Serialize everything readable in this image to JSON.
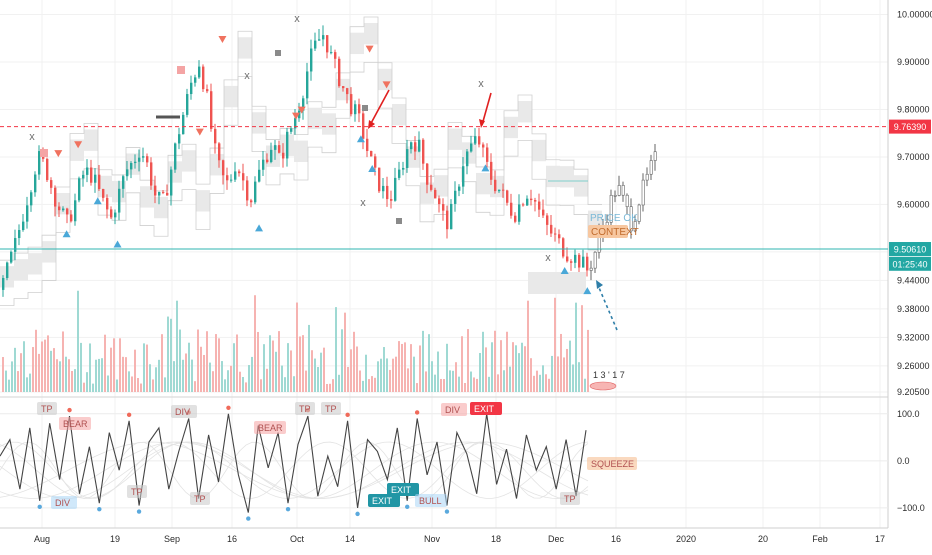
{
  "chart_data": [
    {
      "type": "candlestick",
      "title": "",
      "xlabel": "",
      "ylabel": "",
      "x_tick_labels": [
        "Aug",
        "19",
        "Sep",
        "16",
        "Oct",
        "14",
        "Nov",
        "18",
        "Dec",
        "16",
        "2020",
        "20",
        "Feb",
        "17"
      ],
      "y_tick_labels": [
        "10.00000",
        "9.90000",
        "9.80000",
        "9.70000",
        "9.60000",
        "9.50000",
        "9.44000",
        "9.38000",
        "9.32000",
        "9.26000",
        "9.20500"
      ],
      "ylim": [
        9.205,
        10.02
      ],
      "price_path": [
        9.42,
        9.47,
        9.52,
        9.58,
        9.64,
        9.7,
        9.68,
        9.63,
        9.59,
        9.56,
        9.6,
        9.66,
        9.67,
        9.64,
        9.6,
        9.57,
        9.62,
        9.67,
        9.69,
        9.72,
        9.68,
        9.62,
        9.6,
        9.66,
        9.74,
        9.8,
        9.86,
        9.9,
        9.83,
        9.72,
        9.66,
        9.64,
        9.69,
        9.65,
        9.61,
        9.66,
        9.7,
        9.73,
        9.69,
        9.74,
        9.78,
        9.83,
        9.9,
        9.94,
        9.96,
        9.91,
        9.87,
        9.83,
        9.8,
        9.77,
        9.71,
        9.66,
        9.63,
        9.61,
        9.65,
        9.7,
        9.74,
        9.72,
        9.66,
        9.63,
        9.58,
        9.56,
        9.62,
        9.69,
        9.72,
        9.74,
        9.69,
        9.65,
        9.63,
        9.6,
        9.58,
        9.61,
        9.63,
        9.6,
        9.56,
        9.54,
        9.52,
        9.5,
        9.49,
        9.48,
        9.46,
        9.5,
        9.55,
        9.6,
        9.64,
        9.6,
        9.56,
        9.61,
        9.65,
        9.69,
        9.71
      ],
      "levels": [
        {
          "value": "9.76390",
          "role": "resistance",
          "color": "#f23645",
          "style": "dashed"
        },
        {
          "value": "9.50610",
          "role": "last-price",
          "color": "#2fb5b1",
          "style": "solid"
        }
      ],
      "price_badges": [
        {
          "text": "9.76390",
          "value": 9.7639,
          "color": "#f23645"
        },
        {
          "text": "9.50610",
          "value": 9.5061,
          "color": "#22a7a3"
        },
        {
          "text": "01:25:40",
          "value": 9.475,
          "color": "#22a7a3"
        }
      ],
      "markers_up": [
        0.1,
        0.155,
        0.19,
        0.44,
        0.62,
        0.64,
        0.84,
        0.98,
        1.02
      ],
      "markers_down": [
        0.05,
        0.085,
        0.3,
        0.34,
        0.47,
        0.48,
        0.6,
        0.63
      ],
      "x_marks": [
        {
          "label": "x",
          "t": 0.035
        },
        {
          "label": "x",
          "t": 0.28
        },
        {
          "label": "x",
          "t": 0.345
        },
        {
          "label": "x",
          "t": 0.43
        },
        {
          "label": "x",
          "t": 0.57
        },
        {
          "label": "x",
          "t": 0.65
        }
      ],
      "annotations": [
        "PRICE OK",
        "CONTEXT"
      ],
      "volume_label": "1 3 ' 1 7"
    },
    {
      "type": "line",
      "title": "",
      "y_tick_labels": [
        "100.0",
        "0.0",
        "−100.0"
      ],
      "ylim": [
        -130,
        125
      ],
      "oscillator": [
        10,
        45,
        -60,
        70,
        -85,
        80,
        -40,
        95,
        -70,
        30,
        -90,
        60,
        -20,
        85,
        -95,
        40,
        70,
        -60,
        20,
        90,
        -80,
        55,
        -45,
        100,
        -30,
        -110,
        75,
        -15,
        60,
        -90,
        35,
        95,
        -75,
        10,
        -55,
        85,
        -100,
        45,
        20,
        -40,
        70,
        -85,
        90,
        -30,
        40,
        -95,
        60,
        15,
        -70,
        100,
        -50,
        25,
        -80,
        55,
        -20,
        30,
        -60,
        45,
        -75,
        65
      ],
      "labels": [
        {
          "text": "BEAR",
          "color": "#f5a3a3"
        },
        {
          "text": "BEAR",
          "color": "#f5a3a3"
        },
        {
          "text": "DIV",
          "color": "#f5a3a3"
        },
        {
          "text": "EXIT",
          "color": "#f23645"
        },
        {
          "text": "EXIT",
          "color": "#2196a5"
        },
        {
          "text": "EXIT",
          "color": "#2196a5"
        },
        {
          "text": "BULL",
          "color": "#a9d6f5"
        },
        {
          "text": "SQUEEZE",
          "color": "#f5b98a"
        },
        {
          "text": "DIV",
          "color": "#a9d6f5"
        },
        {
          "text": "DIV",
          "color": "#c8c8c8"
        },
        {
          "text": "TP",
          "color": "#c8c8c8"
        },
        {
          "text": "TP",
          "color": "#c8c8c8"
        },
        {
          "text": "TP",
          "color": "#c8c8c8"
        },
        {
          "text": "TP",
          "color": "#c8c8c8"
        },
        {
          "text": "TP",
          "color": "#c8c8c8"
        },
        {
          "text": "TP",
          "color": "#c8c8c8"
        }
      ]
    }
  ],
  "colors": {
    "up": "#26a69a",
    "down": "#ef5350",
    "cloud": "#e9e9e9",
    "grid": "#f1f1f1",
    "axis": "#333333"
  }
}
